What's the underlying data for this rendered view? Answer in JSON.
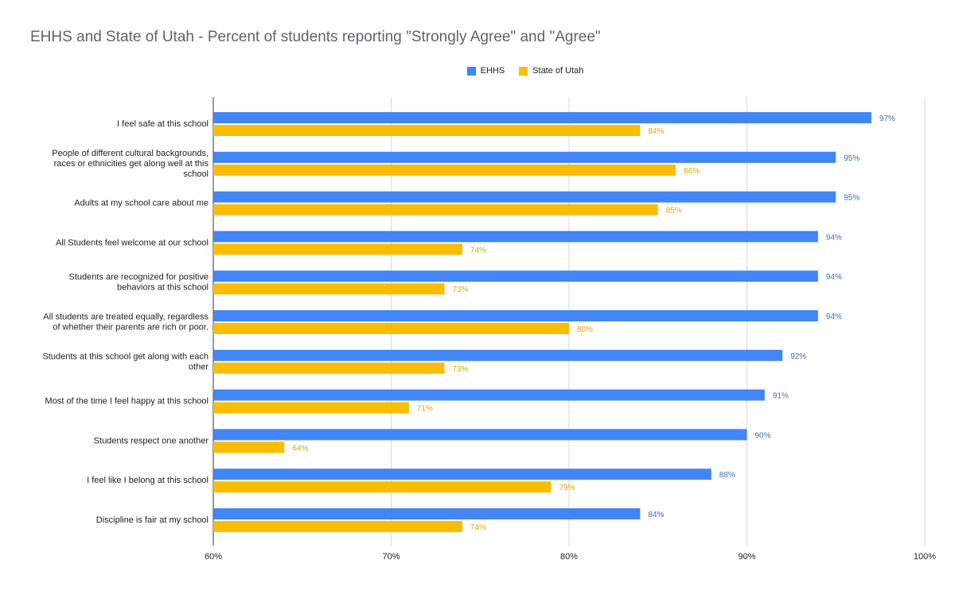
{
  "chart_data": {
    "type": "bar",
    "orientation": "horizontal",
    "title": "EHHS and State of Utah - Percent of students reporting \"Strongly Agree\" and \"Agree\"",
    "categories": [
      [
        "I feel safe at this school"
      ],
      [
        "People of different cultural backgrounds,",
        "races or ethnicities get along well at this",
        "school"
      ],
      [
        "Adults at my school care about me"
      ],
      [
        "All Students feel welcome at our school"
      ],
      [
        "Students are recognized for positive",
        "behaviors at this school"
      ],
      [
        "All students are treated equally, regardless",
        "of whether their parents are rich or poor."
      ],
      [
        "Students at this school get along with each",
        "other"
      ],
      [
        "Most of the time I feel happy at this school"
      ],
      [
        "Students respect one another"
      ],
      [
        "I feel like I belong at this school"
      ],
      [
        "Discipline is fair at my school"
      ]
    ],
    "series": [
      {
        "name": "EHHS",
        "color": "#4285f4",
        "label_color": "#3b6fb6",
        "values": [
          97,
          95,
          95,
          94,
          94,
          94,
          92,
          91,
          90,
          88,
          84
        ]
      },
      {
        "name": "State of Utah",
        "color": "#fbbc04",
        "label_color": "#e0a800",
        "values": [
          84,
          86,
          85,
          74,
          73,
          80,
          73,
          71,
          64,
          79,
          74
        ]
      }
    ],
    "xlim": [
      60,
      100
    ],
    "xticks": [
      "60%",
      "70%",
      "80%",
      "90%",
      "100%"
    ],
    "xtick_values": [
      60,
      70,
      80,
      90,
      100
    ],
    "value_suffix": "%",
    "grid": true,
    "legend_position": "top-center"
  }
}
